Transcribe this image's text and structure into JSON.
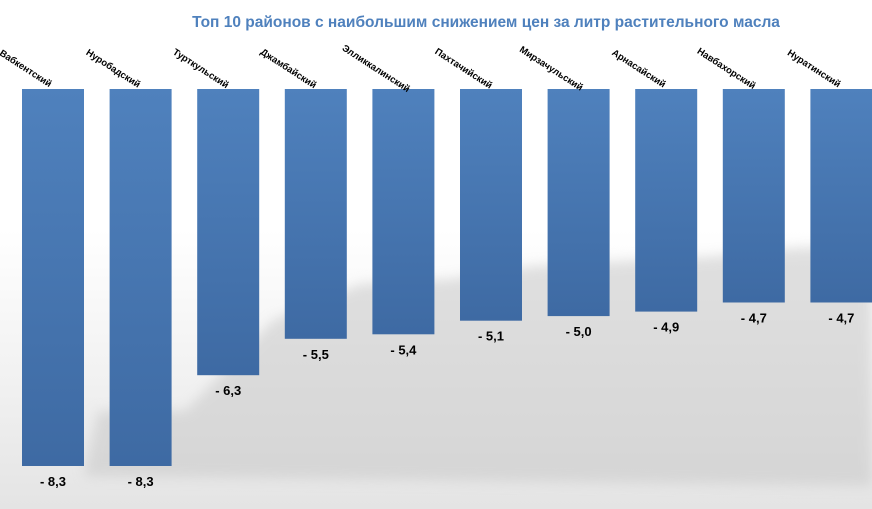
{
  "chart_data": {
    "type": "bar",
    "title": "Топ 10 районов с наибольшим снижением цен за литр растительного масла",
    "categories": [
      "Вабкентский",
      "Нуробадский",
      "Турткульский",
      "Джамбайский",
      "Элликкалинский",
      "Пахтачийский",
      "Мирзачульский",
      "Арнасайский",
      "Навбахорский",
      "Нуратинский"
    ],
    "values": [
      -8.3,
      -8.3,
      -6.3,
      -5.5,
      -5.4,
      -5.1,
      -5.0,
      -4.9,
      -4.7,
      -4.7
    ],
    "value_labels": [
      "- 8,3",
      "- 8,3",
      "- 6,3",
      "- 5,5",
      "- 5,4",
      "- 5,1",
      "- 5,0",
      "- 4,9",
      "- 4,7",
      "- 4,7"
    ],
    "ylim": [
      -8.3,
      0
    ],
    "grid": false,
    "legend": "none",
    "colors": {
      "title": "#4F81BD",
      "bar_top": "#4F81BD",
      "bar_bottom": "#3E6AA3",
      "shadow": "#c8c8c8"
    }
  }
}
